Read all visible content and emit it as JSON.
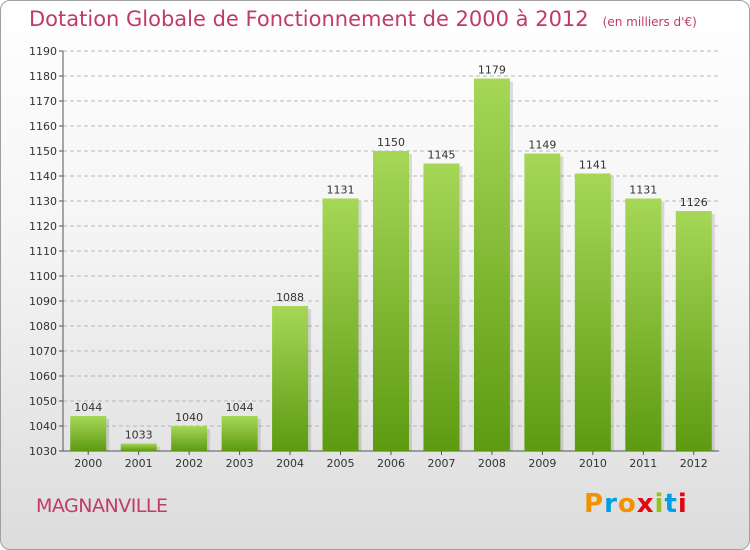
{
  "header": {
    "title": "Dotation Globale de Fonctionnement de 2000 à 2012",
    "subtitle": "(en milliers d'€)"
  },
  "footer": {
    "city": "MAGNANVILLE",
    "logo": "Proxiti"
  },
  "colors": {
    "title": "#c03a6a",
    "bar_top": "#a6d757",
    "bar_bottom": "#5d9a12",
    "grid": "#b7b7b7",
    "logo_letters": [
      "#f39200",
      "#009fe3",
      "#f39200",
      "#e30613",
      "#95c11f",
      "#009fe3",
      "#e30613"
    ]
  },
  "chart_data": {
    "type": "bar",
    "categories": [
      "2000",
      "2001",
      "2002",
      "2003",
      "2004",
      "2005",
      "2006",
      "2007",
      "2008",
      "2009",
      "2010",
      "2011",
      "2012"
    ],
    "values": [
      1044,
      1033,
      1040,
      1044,
      1088,
      1131,
      1150,
      1145,
      1179,
      1149,
      1141,
      1131,
      1126
    ],
    "title": "Dotation Globale de Fonctionnement de 2000 à 2012",
    "subtitle": "(en milliers d'€)",
    "ylim": [
      1030,
      1190
    ],
    "ytick_step": 10,
    "grid": true
  }
}
